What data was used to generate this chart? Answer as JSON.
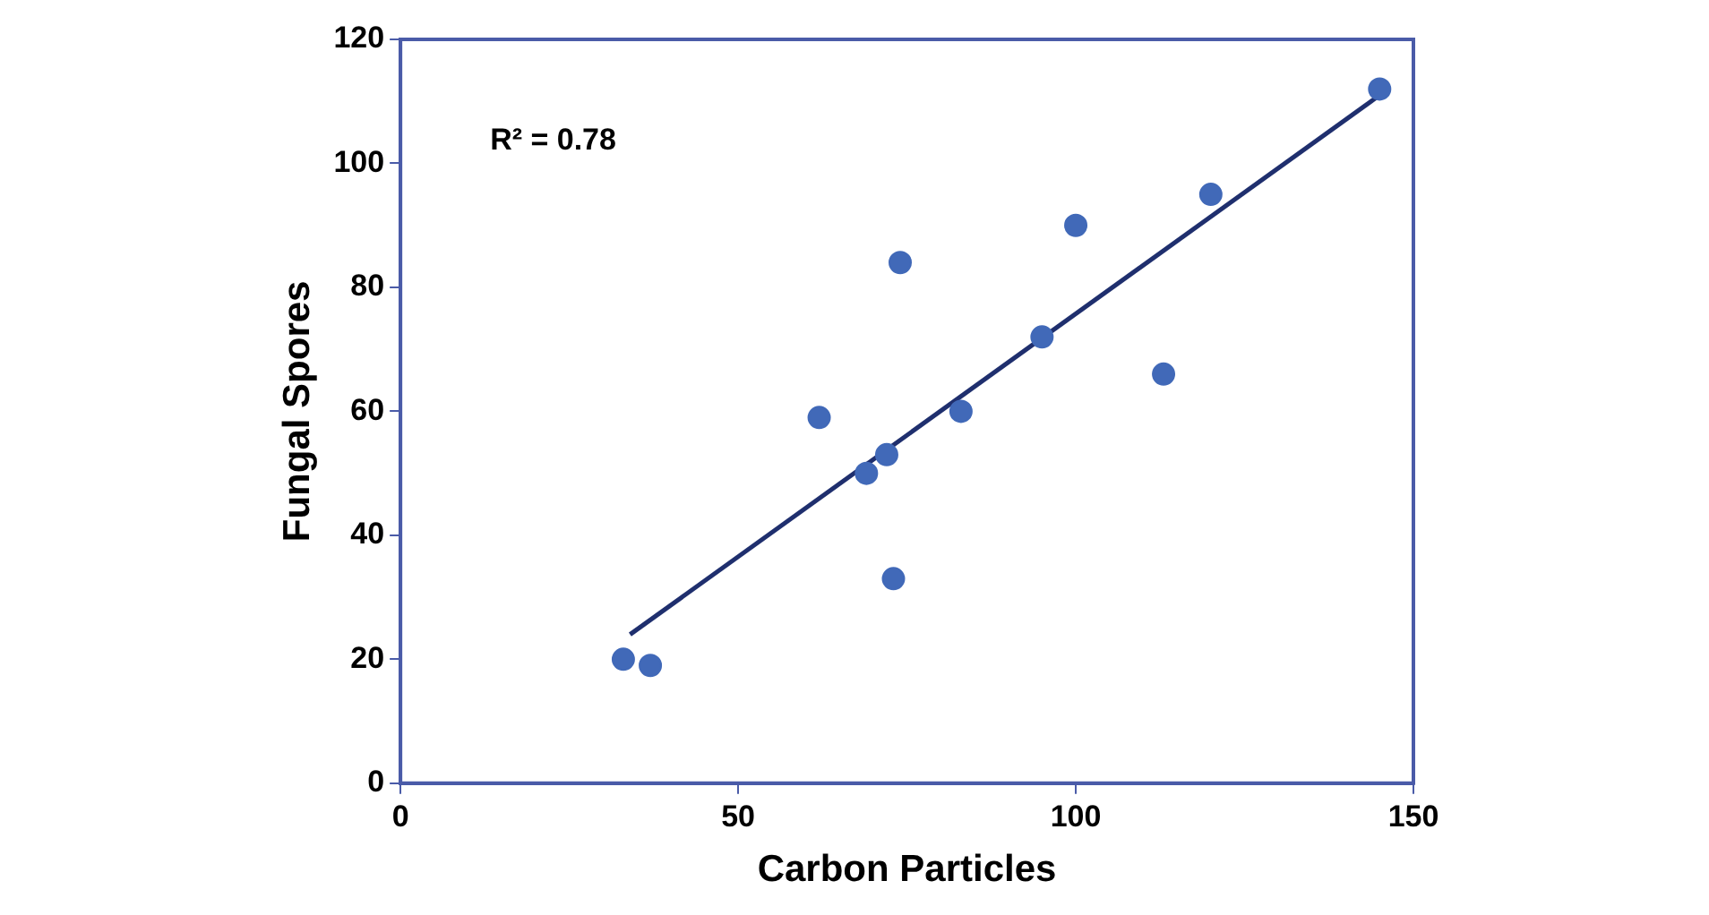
{
  "chart_data": {
    "type": "scatter",
    "xlabel": "Carbon Particles",
    "ylabel": "Fungal Spores",
    "annotations": [
      "R² = 0.78"
    ],
    "xlim": [
      0,
      150
    ],
    "xticks": [
      0,
      50,
      100,
      150
    ],
    "ylim": [
      0,
      120
    ],
    "yticks": [
      0,
      20,
      40,
      60,
      80,
      100,
      120
    ],
    "grid": false,
    "legend": false,
    "marker": "circle",
    "series": [
      {
        "color": "#4169b8",
        "x": [
          33,
          37,
          62,
          69,
          72,
          73,
          74,
          83,
          95,
          100,
          113,
          120,
          145
        ],
        "values": [
          20,
          19,
          59,
          50,
          53,
          33,
          84,
          60,
          72,
          90,
          66,
          95,
          112
        ]
      },
      {
        "type": "line",
        "color": "#1f2f6e",
        "marker": "none",
        "x": [
          34,
          145
        ],
        "values": [
          24,
          111
        ]
      }
    ]
  }
}
